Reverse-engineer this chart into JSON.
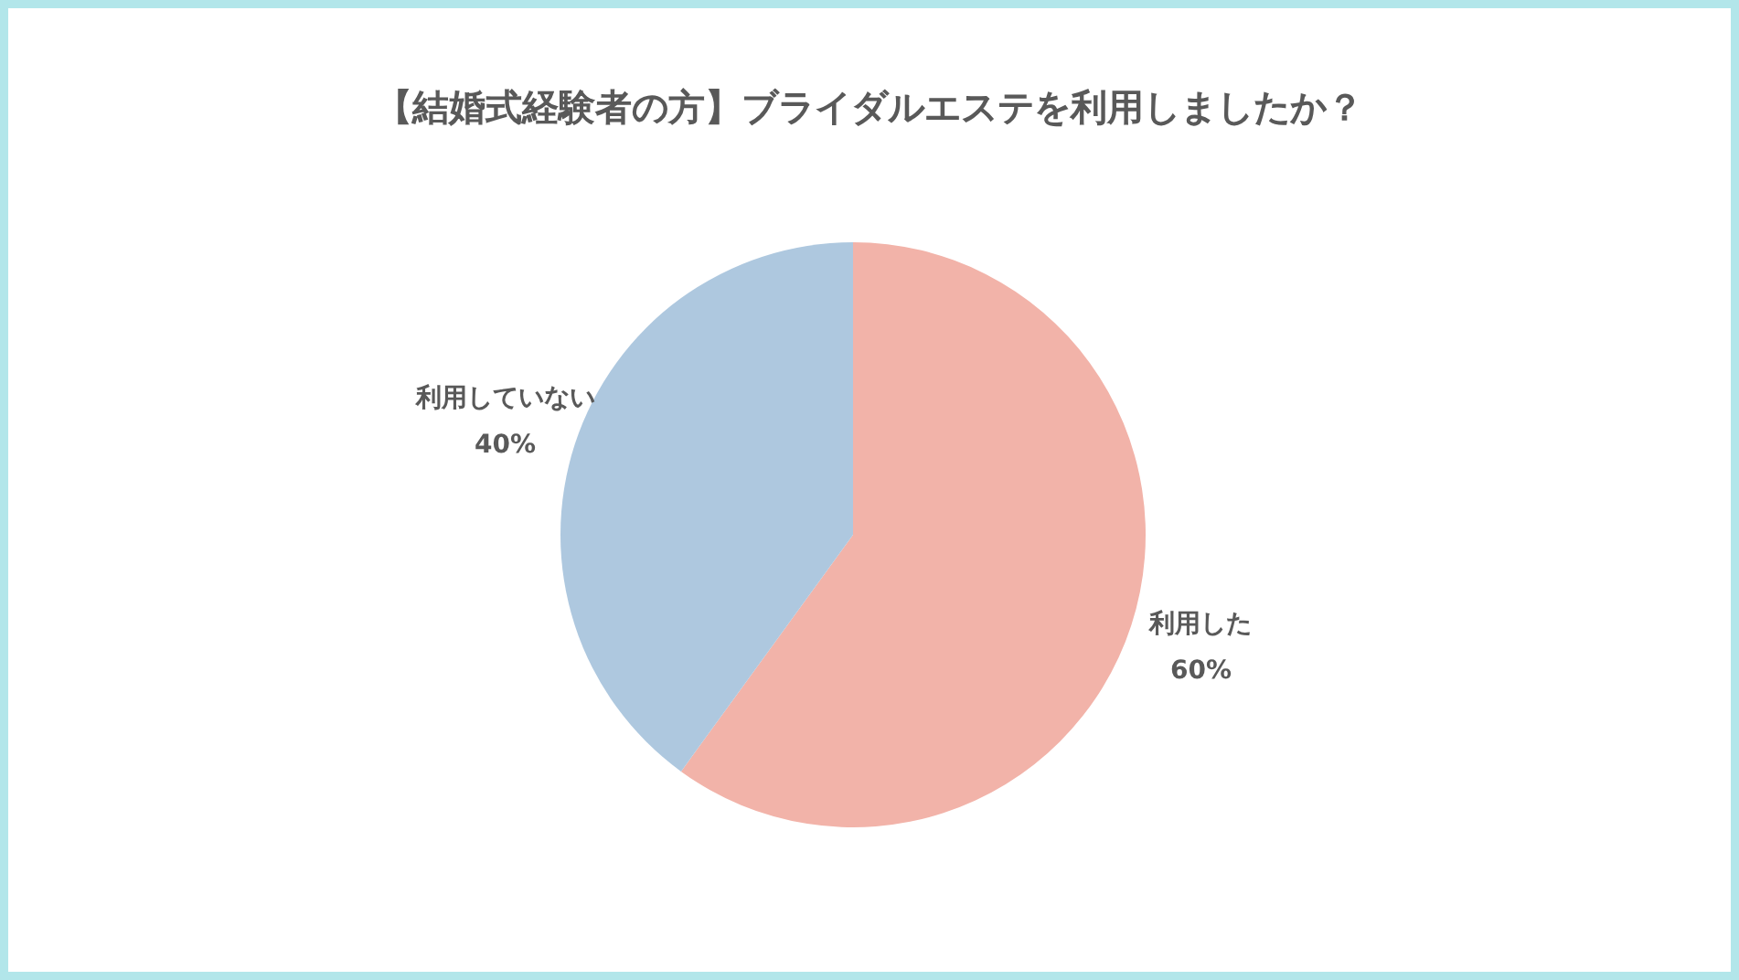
{
  "chart_data": {
    "type": "pie",
    "title": "【結婚式経験者の方】ブライダルエステを利用しましたか？",
    "categories": [
      "利用した",
      "利用していない"
    ],
    "values": [
      60,
      40
    ],
    "value_labels": [
      "60%",
      "40%"
    ],
    "colors": [
      "#f2b3a9",
      "#aec8df"
    ]
  }
}
